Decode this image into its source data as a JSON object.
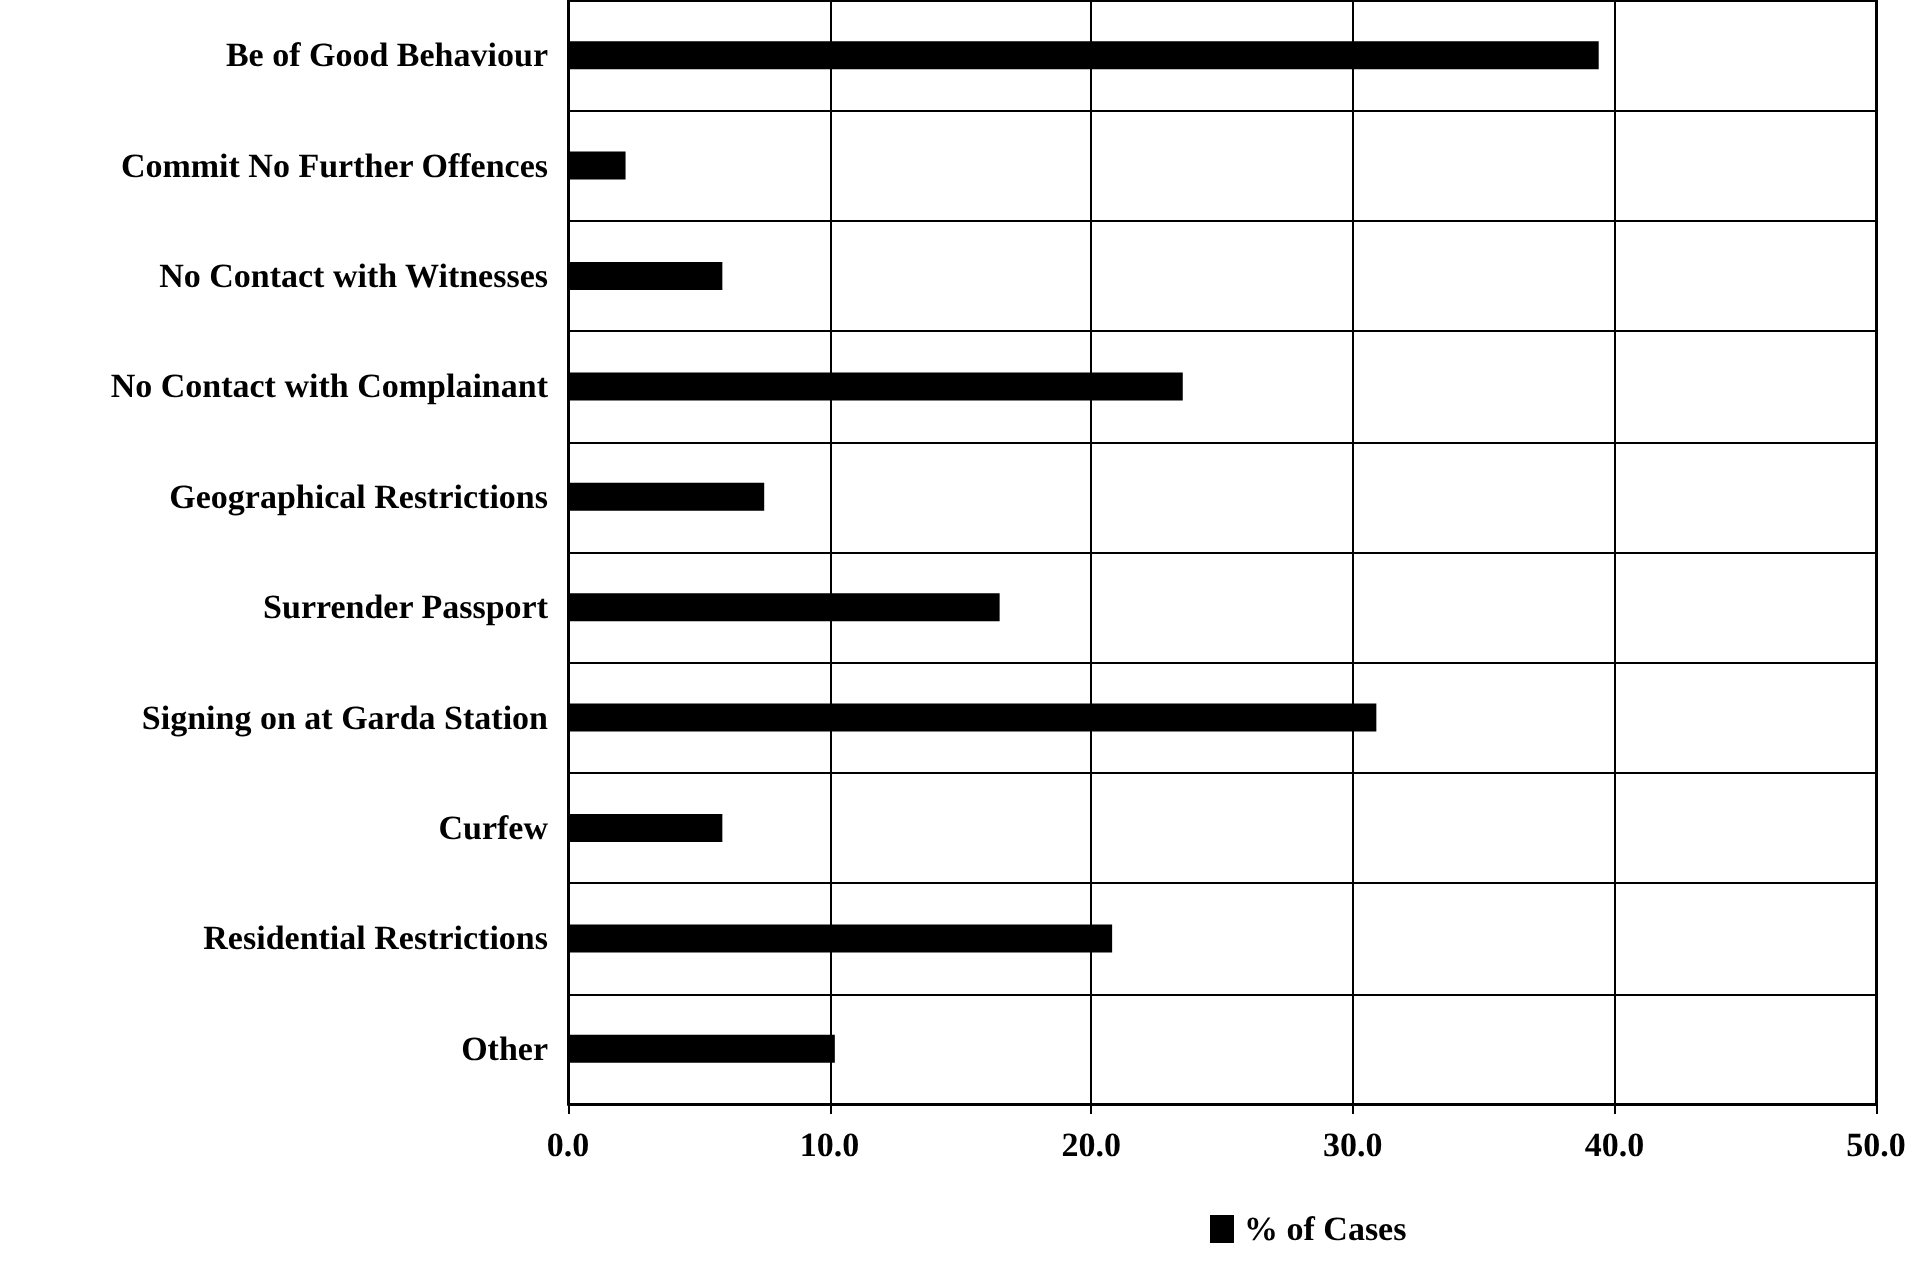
{
  "chart_data": {
    "type": "bar",
    "orientation": "horizontal",
    "categories": [
      "Be of Good Behaviour",
      "Commit No Further Offences",
      "No Contact with Witnesses",
      "No Contact with Complainant",
      "Geographical Restrictions",
      "Surrender Passport",
      "Signing on at Garda Station",
      "Curfew",
      "Residential Restrictions",
      "Other"
    ],
    "series": [
      {
        "name": "% of Cases",
        "color": "#000000",
        "values": [
          39.4,
          2.2,
          5.9,
          23.5,
          7.5,
          16.5,
          30.9,
          5.9,
          20.8,
          10.2
        ]
      }
    ],
    "xlim": [
      0,
      50
    ],
    "xticks": [
      {
        "value": 0,
        "label": "0.0"
      },
      {
        "value": 10,
        "label": "10.0"
      },
      {
        "value": 20,
        "label": "20.0"
      },
      {
        "value": 30,
        "label": "30.0"
      },
      {
        "value": 40,
        "label": "40.0"
      },
      {
        "value": 50,
        "label": "50.0"
      }
    ],
    "grid": true,
    "legend": "bottom"
  }
}
